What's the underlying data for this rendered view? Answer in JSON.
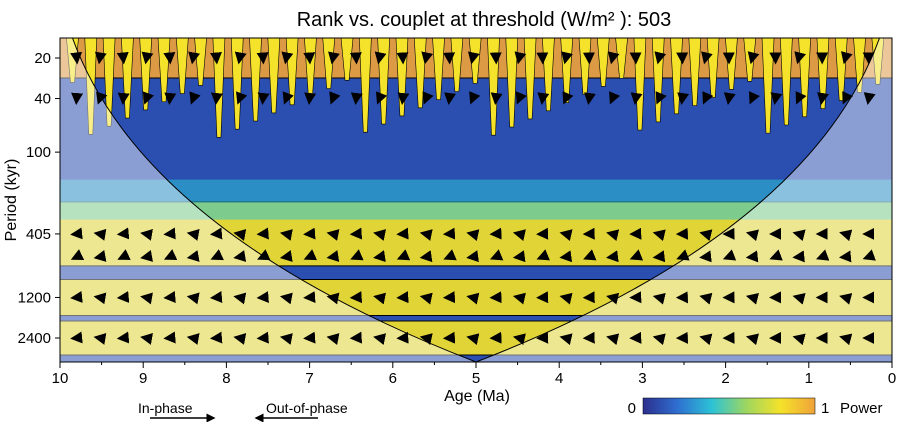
{
  "chart_data": {
    "type": "heatmap",
    "title": "Rank vs. couplet at threshold (W/m² ): 503",
    "xlabel": "Age (Ma)",
    "ylabel": "Period (kyr)",
    "x_ticks": [
      "10",
      "9",
      "8",
      "7",
      "6",
      "5",
      "4",
      "3",
      "2",
      "1",
      "0"
    ],
    "y_ticks": [
      "20",
      "40",
      "100",
      "405",
      "1200",
      "2400"
    ],
    "xlim": [
      10,
      0
    ],
    "y_scale": "log",
    "colorbar": {
      "min_label": "0",
      "max_label": "1",
      "label": "Power",
      "colors": [
        "#2b2f8e",
        "#2f6fd0",
        "#2cc2d6",
        "#9ed660",
        "#f5e22a",
        "#f0a23a"
      ]
    },
    "bands": [
      {
        "period": 20,
        "power": 0.9,
        "phase": "mixed"
      },
      {
        "period": 405,
        "power": 0.85,
        "phase": "out-of-phase"
      },
      {
        "period": 1200,
        "power": 0.75,
        "phase": "out-of-phase"
      },
      {
        "period": 2400,
        "power": 0.7,
        "phase": "out-of-phase"
      }
    ],
    "legend": {
      "in_phase": "In-phase",
      "out_of_phase": "Out-of-phase"
    }
  }
}
